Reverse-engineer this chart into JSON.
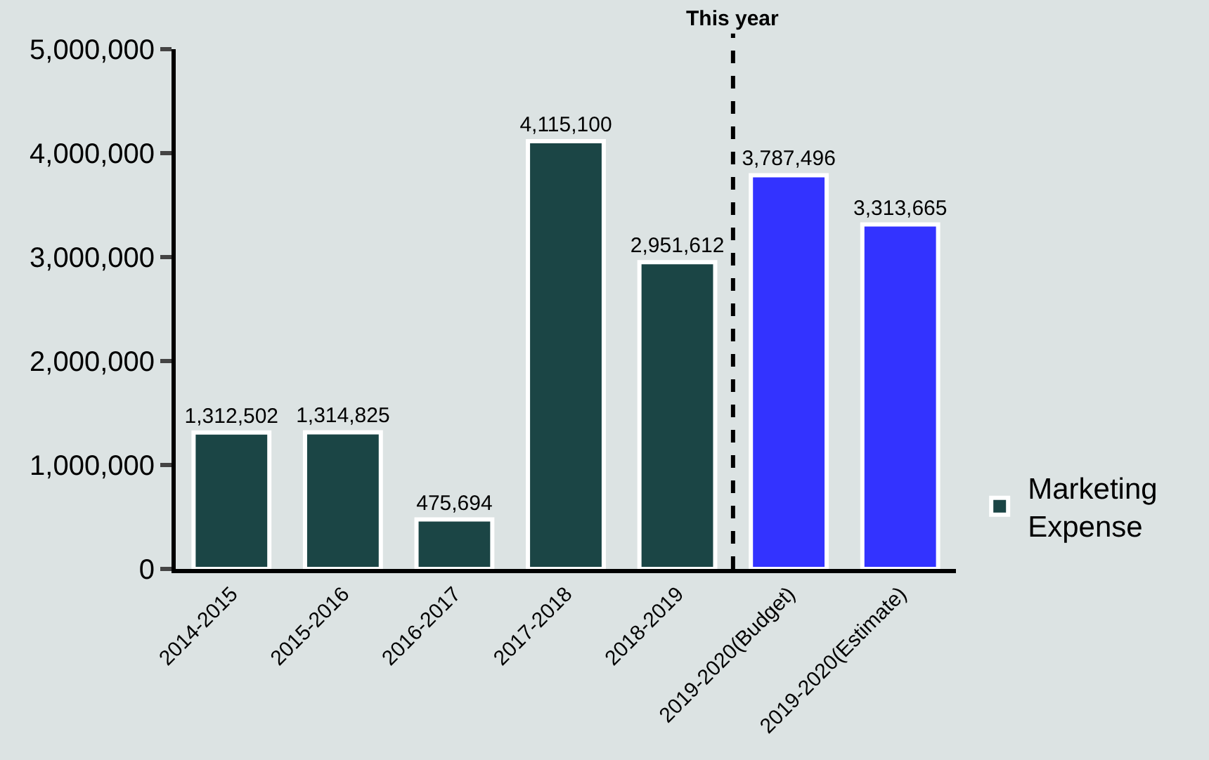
{
  "chart_data": {
    "type": "bar",
    "categories": [
      "2014-2015",
      "2015-2016",
      "2016-2017",
      "2017-2018",
      "2018-2019",
      "2019-2020(Budget)",
      "2019-2020(Estimate)"
    ],
    "series": [
      {
        "name": "Marketing Expense",
        "colors": [
          "#1b4545",
          "#1b4545",
          "#1b4545",
          "#1b4545",
          "#1b4545",
          "#3333ff",
          "#3333ff"
        ],
        "values": [
          1312502,
          1314825,
          475694,
          4115100,
          2951612,
          3787496,
          3313665
        ],
        "value_labels": [
          "1,312,502",
          "1,314,825",
          "475,694",
          "4,115,100",
          "2,951,612",
          "3,787,496",
          "3,313,665"
        ]
      }
    ],
    "ylim": [
      0,
      5000000
    ],
    "yticks": [
      {
        "value": 0,
        "label": "0"
      },
      {
        "value": 1000000,
        "label": "1,000,000"
      },
      {
        "value": 2000000,
        "label": "2,000,000"
      },
      {
        "value": 3000000,
        "label": "3,000,000"
      },
      {
        "value": 4000000,
        "label": "4,000,000"
      },
      {
        "value": 5000000,
        "label": "5,000,000"
      }
    ],
    "annotations": [
      "This year"
    ],
    "legend": "right",
    "grid": false
  }
}
